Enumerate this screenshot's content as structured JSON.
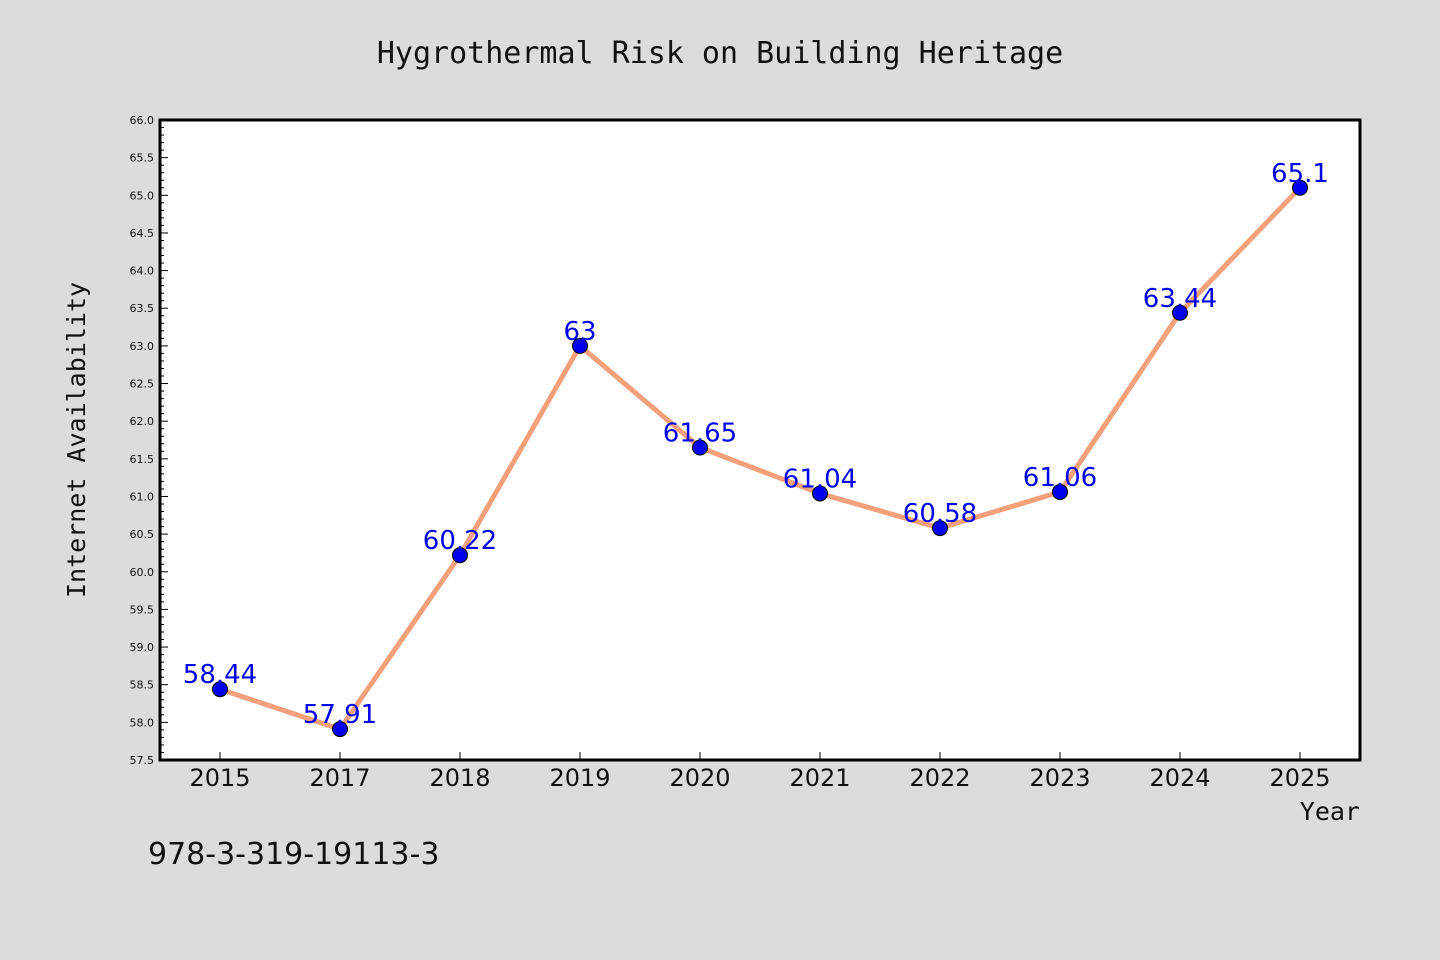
{
  "chart_data": {
    "type": "line",
    "title": "Hygrothermal Risk on Building Heritage",
    "xlabel": "Year",
    "ylabel": "Internet Availability",
    "categories": [
      "2015",
      "2017",
      "2018",
      "2019",
      "2020",
      "2021",
      "2022",
      "2023",
      "2024",
      "2025"
    ],
    "series": [
      {
        "values": [
          58.44,
          57.91,
          60.22,
          63,
          61.65,
          61.04,
          60.58,
          61.06,
          63.44,
          65.1
        ],
        "data_labels": [
          "58.44",
          "57.91",
          "60.22",
          "63",
          "61.65",
          "61.04",
          "60.58",
          "61.06",
          "63.44",
          "65.1"
        ],
        "line_color": "#f4a07a",
        "marker_color": "#0000ee",
        "label_color": "#0000ee"
      }
    ],
    "ylim": [
      57.5,
      66.0
    ],
    "yticks": [
      "57.5",
      "58.0",
      "58.5",
      "59.0",
      "59.5",
      "60.0",
      "60.5",
      "61.0",
      "61.5",
      "62.0",
      "62.5",
      "63.0",
      "63.5",
      "64.0",
      "64.5",
      "65.0",
      "65.5",
      "66.0"
    ],
    "grid": false,
    "legend": "none"
  },
  "footnote": "978-3-319-19113-3",
  "colors": {
    "background": "#dcdcdc",
    "plot_background": "#ffffff",
    "axis": "#000000"
  }
}
